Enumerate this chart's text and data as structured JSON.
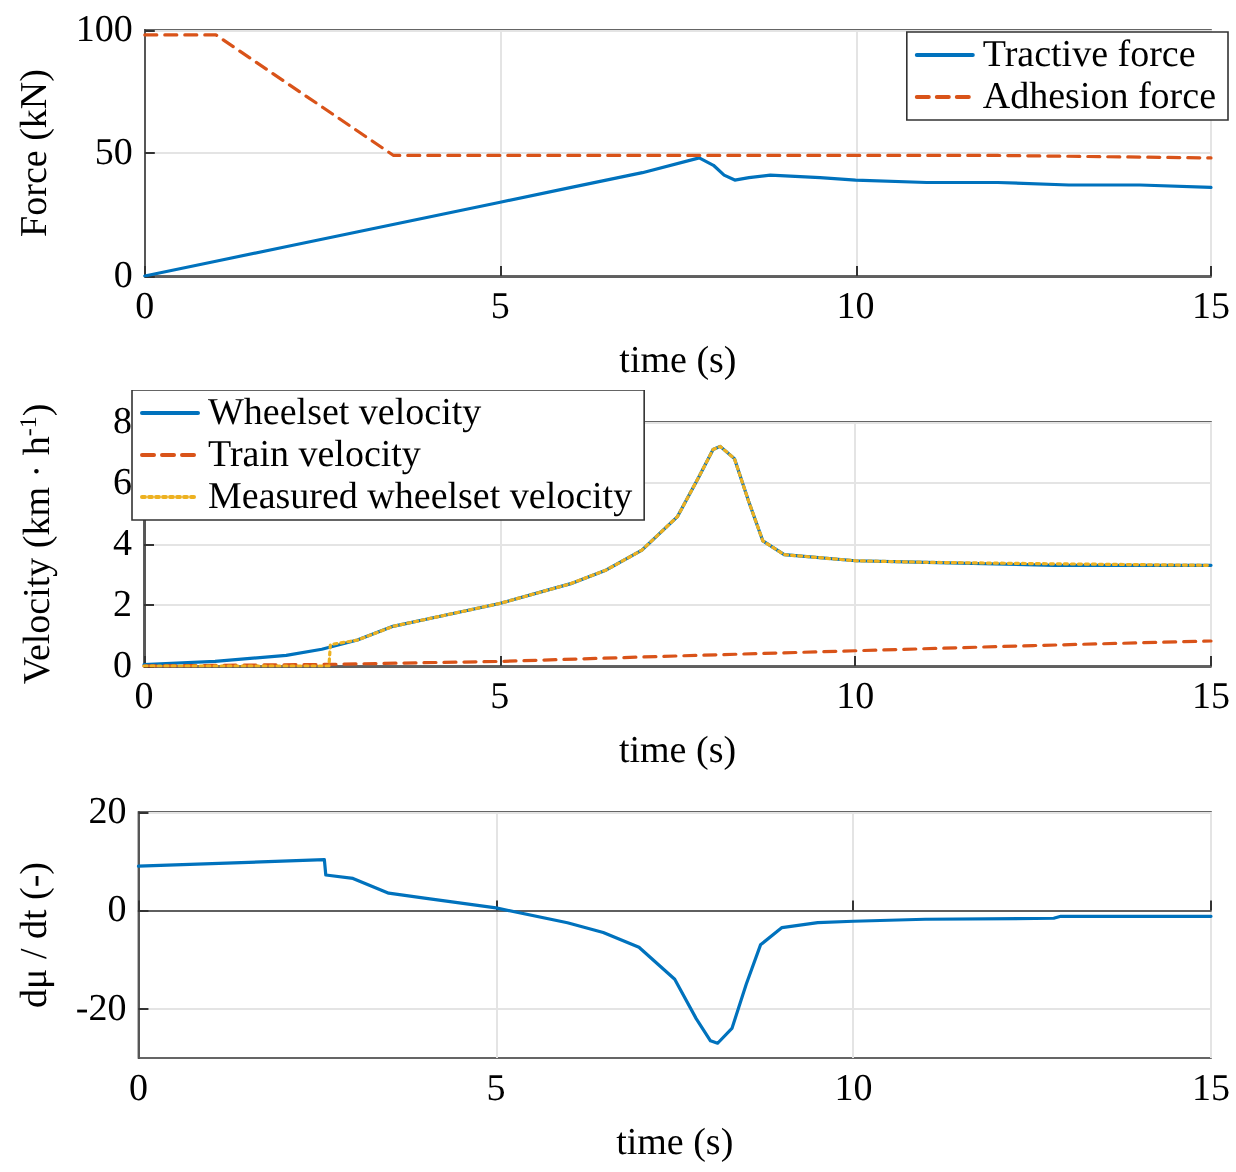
{
  "chart_data": [
    {
      "type": "line",
      "xlabel": "time (s)",
      "ylabel": "Force (kN)",
      "xlim": [
        0,
        15
      ],
      "xticks": [
        0,
        5,
        10,
        15
      ],
      "ylim": [
        0,
        100
      ],
      "yticks": [
        0,
        50,
        100
      ],
      "grid": true,
      "legend": "top right",
      "marker": "none",
      "series": [
        {
          "name": "Tractive force",
          "color": "#0072bd",
          "line_style": "solid",
          "x": [
            0,
            1,
            2,
            3,
            4,
            5,
            6,
            7,
            7.8,
            8.0,
            8.15,
            8.3,
            8.5,
            8.8,
            9.5,
            10,
            11,
            12,
            13,
            14,
            15
          ],
          "values": [
            0,
            6,
            12,
            18,
            24,
            30,
            36,
            42,
            48,
            45,
            41,
            39,
            40,
            41,
            40,
            39,
            38,
            38,
            37,
            37,
            36
          ]
        },
        {
          "name": "Adhesion force",
          "color": "#d95319",
          "line_style": "dashed",
          "x": [
            0,
            1,
            3.5,
            5,
            8,
            10,
            12,
            15
          ],
          "values": [
            98,
            98,
            49,
            49,
            49,
            49,
            49,
            48
          ]
        }
      ]
    },
    {
      "type": "line",
      "xlabel": "time (s)",
      "ylabel": "Velocity (km · h$^{-1}$)",
      "xlim": [
        0,
        15
      ],
      "xticks": [
        0,
        5,
        10,
        15
      ],
      "ylim": [
        0,
        8
      ],
      "yticks": [
        0,
        2,
        4,
        6,
        8
      ],
      "grid": true,
      "legend": "top left",
      "marker": "none",
      "series": [
        {
          "name": "Wheelset velocity",
          "color": "#0072bd",
          "line_style": "solid",
          "x": [
            0,
            1,
            2,
            2.5,
            3,
            3.5,
            4,
            5,
            6,
            6.5,
            7,
            7.5,
            7.8,
            8,
            8.1,
            8.3,
            8.5,
            8.7,
            9,
            10,
            11,
            12.8,
            15
          ],
          "values": [
            0.05,
            0.15,
            0.35,
            0.55,
            0.85,
            1.3,
            1.55,
            2.05,
            2.7,
            3.15,
            3.8,
            4.9,
            6.2,
            7.1,
            7.2,
            6.8,
            5.4,
            4.1,
            3.65,
            3.45,
            3.4,
            3.3,
            3.3
          ]
        },
        {
          "name": "Train velocity",
          "color": "#d95319",
          "line_style": "dashed",
          "x": [
            0,
            2.5,
            5,
            7.5,
            10,
            12.5,
            15
          ],
          "values": [
            0,
            0.05,
            0.15,
            0.33,
            0.5,
            0.67,
            0.82
          ]
        },
        {
          "name": "Measured wheelset velocity",
          "color": "#edb120",
          "line_style": "dotted",
          "x": [
            0,
            2.6,
            2.62,
            3,
            3.5,
            4,
            5,
            6,
            6.5,
            7,
            7.5,
            7.8,
            8,
            8.1,
            8.3,
            8.5,
            8.7,
            9,
            10,
            11,
            12.8,
            15
          ],
          "values": [
            0,
            0,
            0.7,
            0.85,
            1.3,
            1.55,
            2.05,
            2.7,
            3.15,
            3.8,
            4.9,
            6.2,
            7.1,
            7.2,
            6.8,
            5.4,
            4.1,
            3.65,
            3.45,
            3.4,
            3.35,
            3.3
          ]
        }
      ]
    },
    {
      "type": "line",
      "xlabel": "time (s)",
      "ylabel": "dμ / dt (-)",
      "xlim": [
        0,
        15
      ],
      "xticks": [
        0,
        5,
        10,
        15
      ],
      "ylim": [
        -30,
        20
      ],
      "yticks": [
        -20,
        0,
        20
      ],
      "grid": true,
      "legend": false,
      "marker": "none",
      "series": [
        {
          "color": "#0072bd",
          "line_style": "solid",
          "x": [
            0,
            2.6,
            2.62,
            3,
            3.5,
            4,
            5,
            6,
            6.5,
            7,
            7.5,
            7.8,
            8,
            8.1,
            8.3,
            8.5,
            8.7,
            9,
            9.5,
            10,
            11,
            12.8,
            12.9,
            15
          ],
          "values": [
            9,
            10.3,
            7.2,
            6.5,
            3.5,
            2.5,
            0.5,
            -2.5,
            -4.5,
            -7.5,
            -14,
            -22,
            -26.5,
            -27,
            -24,
            -15,
            -7,
            -3.5,
            -2.5,
            -2.2,
            -1.8,
            -1.6,
            -1.2,
            -1.2
          ]
        }
      ]
    }
  ]
}
